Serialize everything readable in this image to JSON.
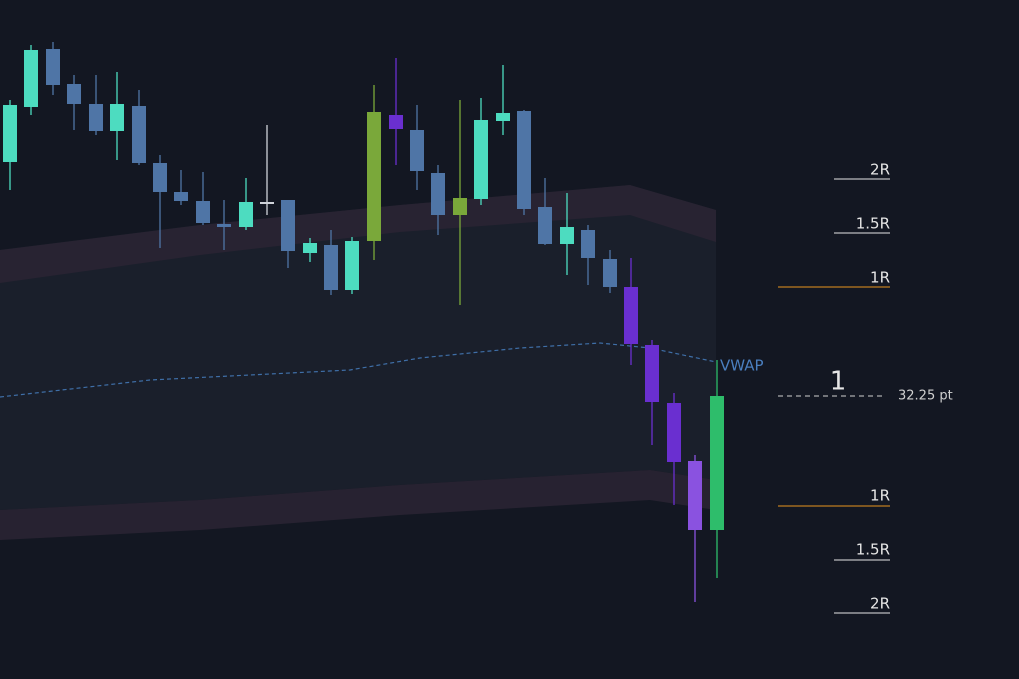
{
  "levels": {
    "upper": [
      "2R",
      "1.5R",
      "1R"
    ],
    "lower": [
      "1R",
      "1.5R",
      "2R"
    ]
  },
  "indicator": "VWAP",
  "position": {
    "label": "1",
    "distance": "32.25 pt"
  }
}
